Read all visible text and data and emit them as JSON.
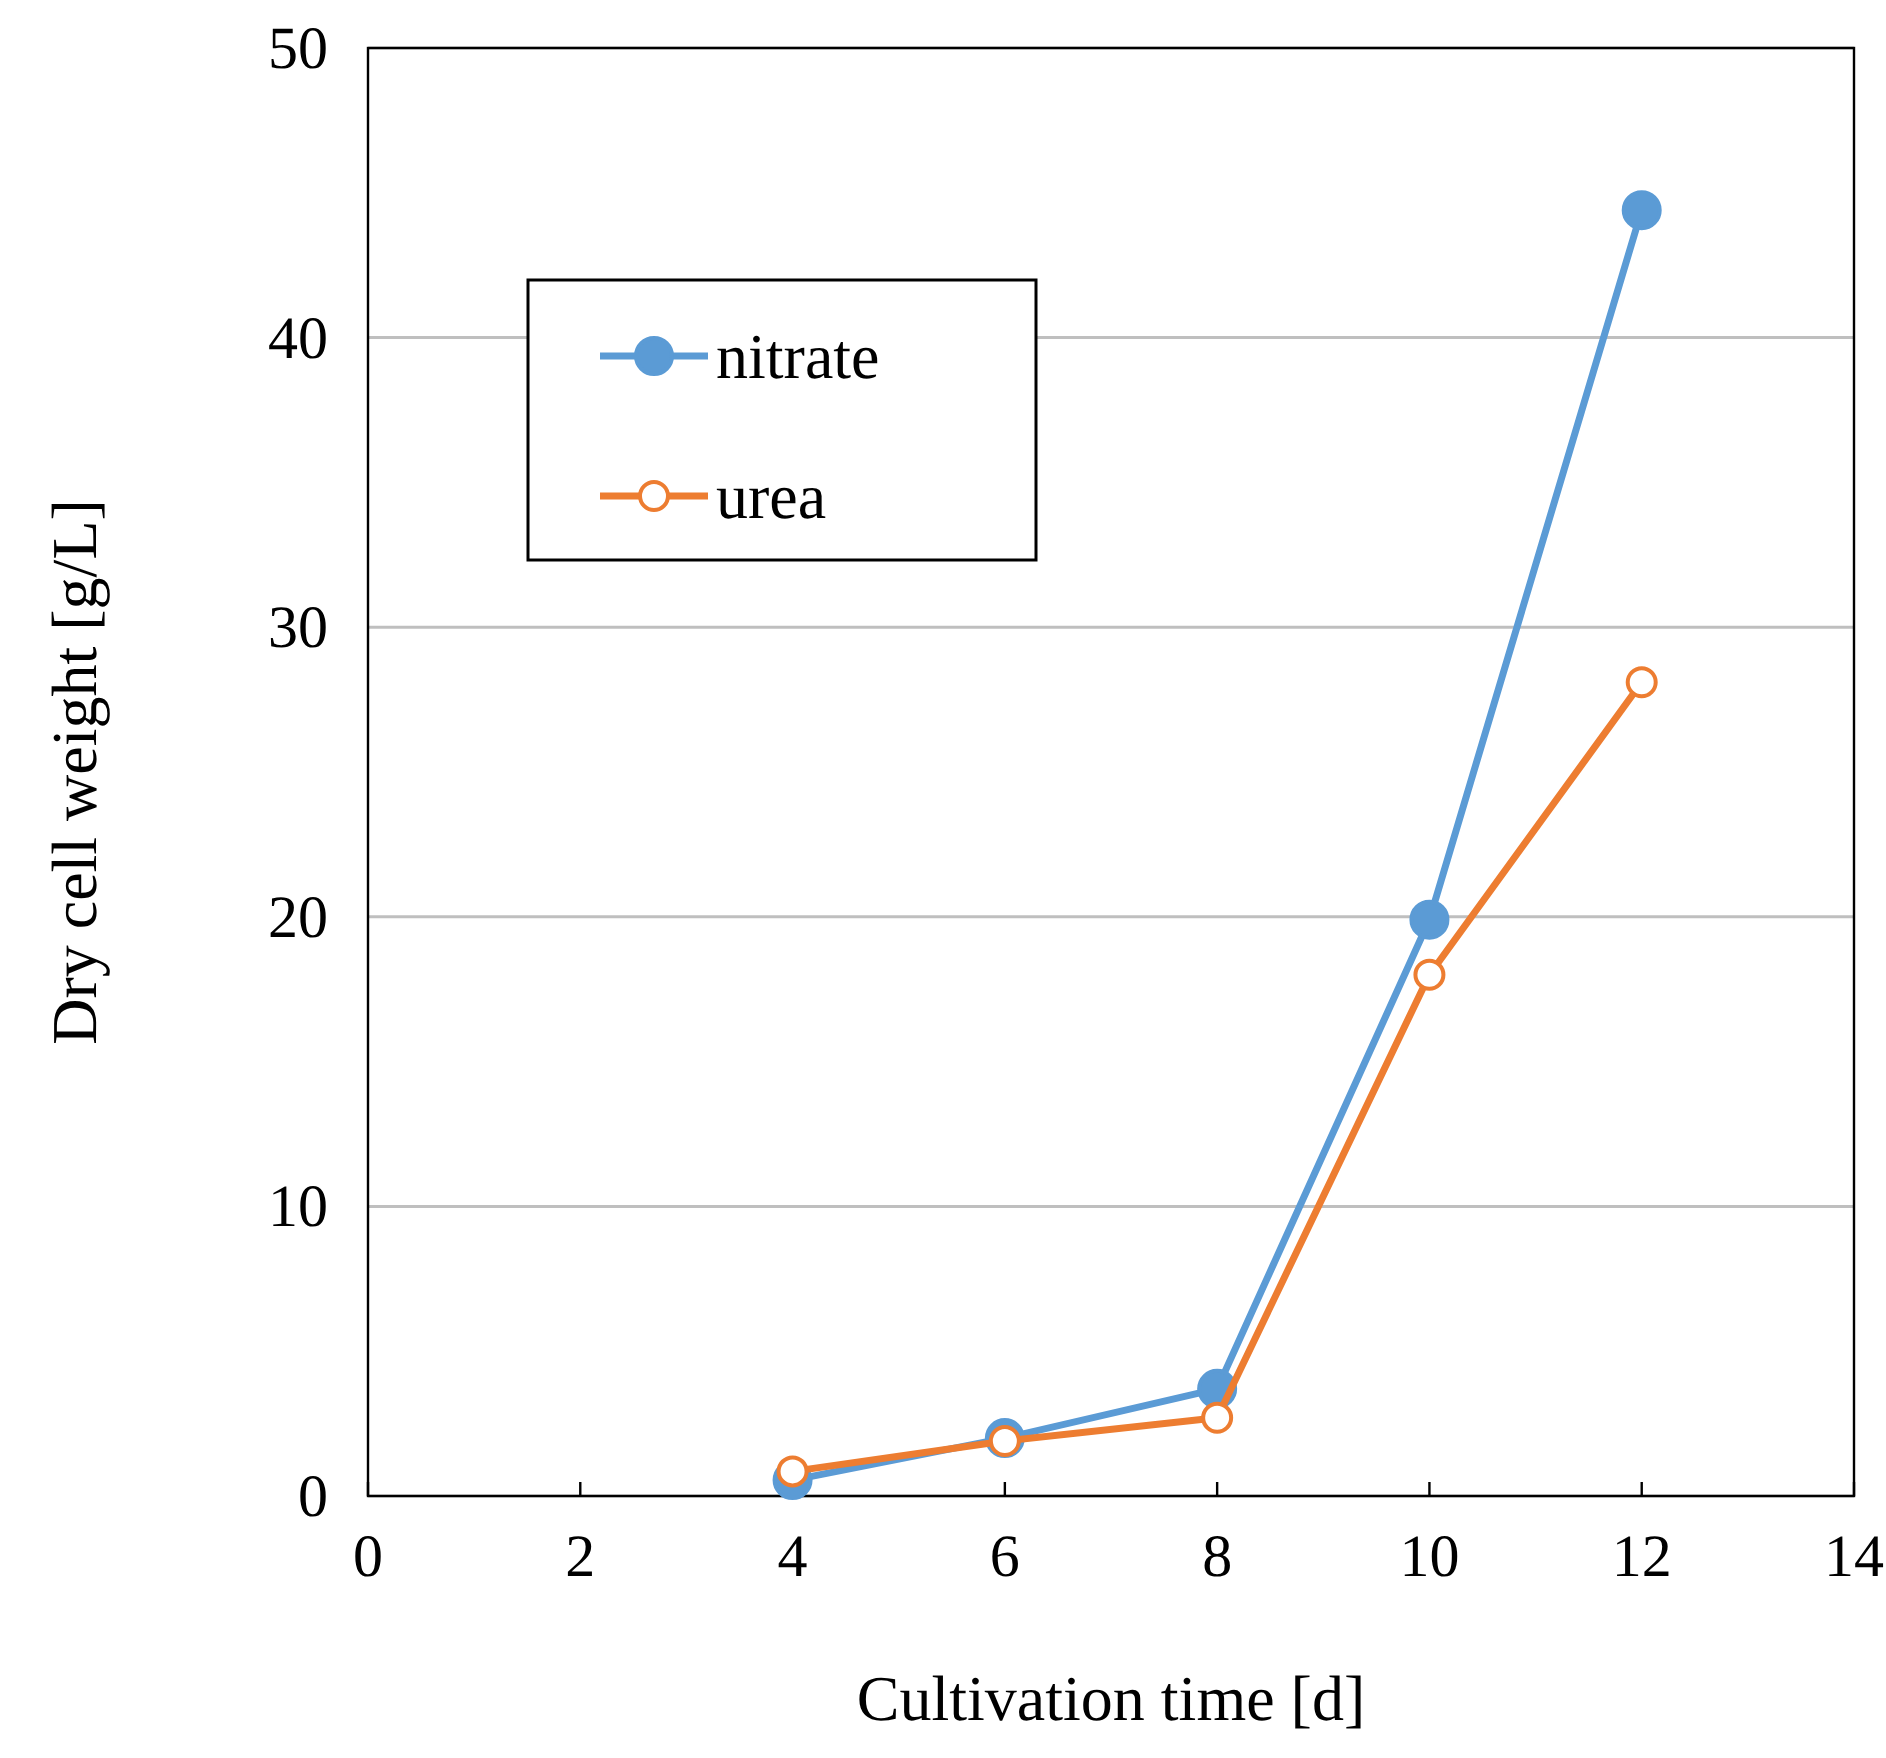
{
  "chart_data": {
    "type": "line",
    "xlabel": "Cultivation time [d]",
    "ylabel": "Dry cell weight [g/L]",
    "x": [
      4,
      6,
      8,
      10,
      12
    ],
    "series": [
      {
        "name": "nitrate",
        "color": "#5b9bd5",
        "values": [
          0.55,
          2.0,
          3.7,
          19.9,
          44.4
        ]
      },
      {
        "name": "urea",
        "color": "#ed7d31",
        "values": [
          0.85,
          1.9,
          2.7,
          18.0,
          28.1
        ]
      }
    ],
    "xlim": [
      0,
      14
    ],
    "xticks": [
      0,
      2,
      4,
      6,
      8,
      10,
      12,
      14
    ],
    "ylim": [
      0,
      50
    ],
    "yticks": [
      0,
      10,
      20,
      30,
      40,
      50
    ],
    "grid": "y",
    "legend": "top left",
    "marker": "circle",
    "line_style": "solid"
  }
}
